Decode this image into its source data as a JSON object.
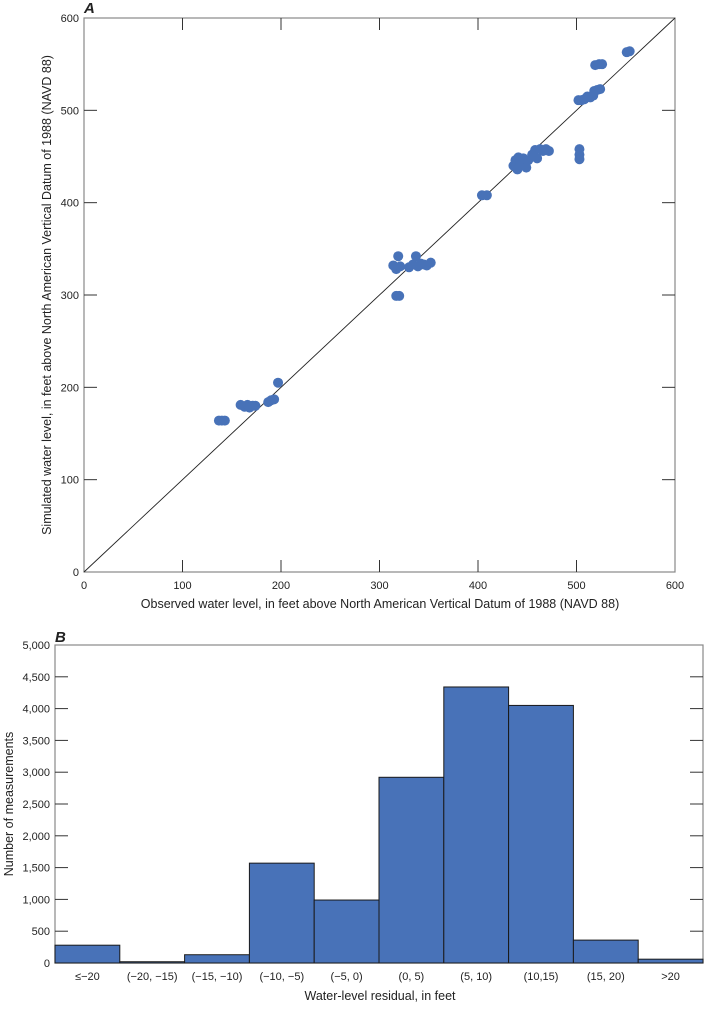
{
  "chart_data": [
    {
      "panel": "A",
      "type": "scatter",
      "title": "",
      "xlabel": "Observed water level, in feet above North American Vertical Datum of 1988 (NAVD 88)",
      "ylabel": "Simulated water level, in feet above North American Vertical Datum of 1988 (NAVD 88)",
      "xlim": [
        0,
        600
      ],
      "ylim": [
        0,
        600
      ],
      "xticks": [
        "0",
        "100",
        "200",
        "300",
        "400",
        "500",
        "600"
      ],
      "yticks": [
        "0",
        "100",
        "200",
        "300",
        "400",
        "500",
        "600"
      ],
      "reference_line": "1:1 line",
      "marker_color": "#4872B8",
      "points": [
        [
          137,
          164
        ],
        [
          140,
          164
        ],
        [
          143,
          164
        ],
        [
          159,
          181
        ],
        [
          163,
          179
        ],
        [
          166,
          181
        ],
        [
          168,
          178
        ],
        [
          171,
          180
        ],
        [
          174,
          180
        ],
        [
          187,
          184
        ],
        [
          190,
          186
        ],
        [
          193,
          187
        ],
        [
          197,
          205
        ],
        [
          314,
          332
        ],
        [
          317,
          328
        ],
        [
          319,
          342
        ],
        [
          321,
          331
        ],
        [
          317,
          299
        ],
        [
          320,
          299
        ],
        [
          330,
          330
        ],
        [
          334,
          333
        ],
        [
          337,
          342
        ],
        [
          339,
          331
        ],
        [
          342,
          334
        ],
        [
          345,
          333
        ],
        [
          348,
          332
        ],
        [
          352,
          335
        ],
        [
          404,
          408
        ],
        [
          409,
          408
        ],
        [
          436,
          440
        ],
        [
          438,
          446
        ],
        [
          440,
          436
        ],
        [
          441,
          449
        ],
        [
          443,
          442
        ],
        [
          446,
          448
        ],
        [
          449,
          438
        ],
        [
          451,
          446
        ],
        [
          455,
          452
        ],
        [
          458,
          457
        ],
        [
          460,
          448
        ],
        [
          463,
          458
        ],
        [
          466,
          456
        ],
        [
          469,
          458
        ],
        [
          472,
          456
        ],
        [
          502,
          511
        ],
        [
          505,
          511
        ],
        [
          508,
          512
        ],
        [
          511,
          515
        ],
        [
          514,
          514
        ],
        [
          517,
          516
        ],
        [
          503,
          458
        ],
        [
          503,
          452
        ],
        [
          503,
          447
        ],
        [
          518,
          521
        ],
        [
          521,
          522
        ],
        [
          524,
          523
        ],
        [
          519,
          549
        ],
        [
          523,
          550
        ],
        [
          526,
          550
        ],
        [
          551,
          563
        ],
        [
          554,
          564
        ]
      ]
    },
    {
      "panel": "B",
      "type": "bar",
      "title": "",
      "xlabel": "Water-level residual, in feet",
      "ylabel": "Number of measurements",
      "ylim": [
        0,
        5000
      ],
      "yticks": [
        "0",
        "500",
        "1,000",
        "1,500",
        "2,000",
        "2,500",
        "3,000",
        "3,500",
        "4,000",
        "4,500",
        "5,000"
      ],
      "categories": [
        "≤−20",
        "(−20, −15)",
        "(−15, −10)",
        "(−10, −5)",
        "(−5, 0)",
        "(0, 5)",
        "(5, 10)",
        "(10,15)",
        "(15, 20)",
        ">20"
      ],
      "values": [
        280,
        20,
        130,
        1570,
        990,
        2920,
        4340,
        4050,
        360,
        60
      ],
      "bar_color": "#4872B8"
    }
  ],
  "panelA": {
    "letter": "A",
    "xlabel": "Observed water level, in feet above North American Vertical Datum of 1988 (NAVD 88)",
    "ylabel": "Simulated water level, in feet above North American Vertical Datum of 1988 (NAVD 88)"
  },
  "panelB": {
    "letter": "B",
    "xlabel": "Water-level residual, in feet",
    "ylabel": "Number of measurements"
  }
}
